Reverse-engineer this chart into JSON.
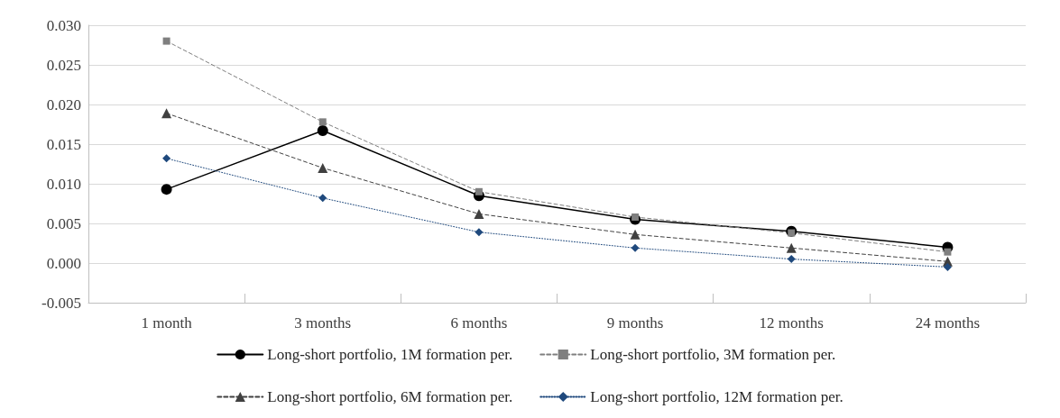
{
  "chart_data": {
    "type": "line",
    "categories": [
      "1 month",
      "3 months",
      "6 months",
      "9 months",
      "12 months",
      "24 months"
    ],
    "series": [
      {
        "name": "Long-short portfolio, 1M formation per.",
        "color": "#000000",
        "marker": "circle",
        "line_style": "solid",
        "values": [
          0.0093,
          0.0167,
          0.0085,
          0.0055,
          0.004,
          0.002
        ]
      },
      {
        "name": "Long-short portfolio, 3M formation per.",
        "color": "#7f7f7f",
        "marker": "square",
        "line_style": "dashed",
        "values": [
          0.028,
          0.0178,
          0.009,
          0.0058,
          0.0038,
          0.0014
        ]
      },
      {
        "name": "Long-short portfolio, 6M formation per.",
        "color": "#404040",
        "marker": "triangle",
        "line_style": "dashed",
        "values": [
          0.0189,
          0.012,
          0.0062,
          0.0036,
          0.0019,
          0.0002
        ]
      },
      {
        "name": "Long-short portfolio, 12M formation per.",
        "color": "#1f497d",
        "marker": "diamond",
        "line_style": "dotted",
        "values": [
          0.0132,
          0.0082,
          0.0039,
          0.0019,
          0.0005,
          -0.0005
        ]
      }
    ],
    "ylim": [
      -0.005,
      0.03
    ],
    "yticks": [
      {
        "value": -0.005,
        "label": "-0.005"
      },
      {
        "value": 0,
        "label": "0.000"
      },
      {
        "value": 0.005,
        "label": "0.005"
      },
      {
        "value": 0.01,
        "label": "0.010"
      },
      {
        "value": 0.015,
        "label": "0.015"
      },
      {
        "value": 0.02,
        "label": "0.020"
      },
      {
        "value": 0.025,
        "label": "0.025"
      },
      {
        "value": 0.03,
        "label": "0.030"
      }
    ],
    "grid": "y",
    "legend": "bottom"
  }
}
